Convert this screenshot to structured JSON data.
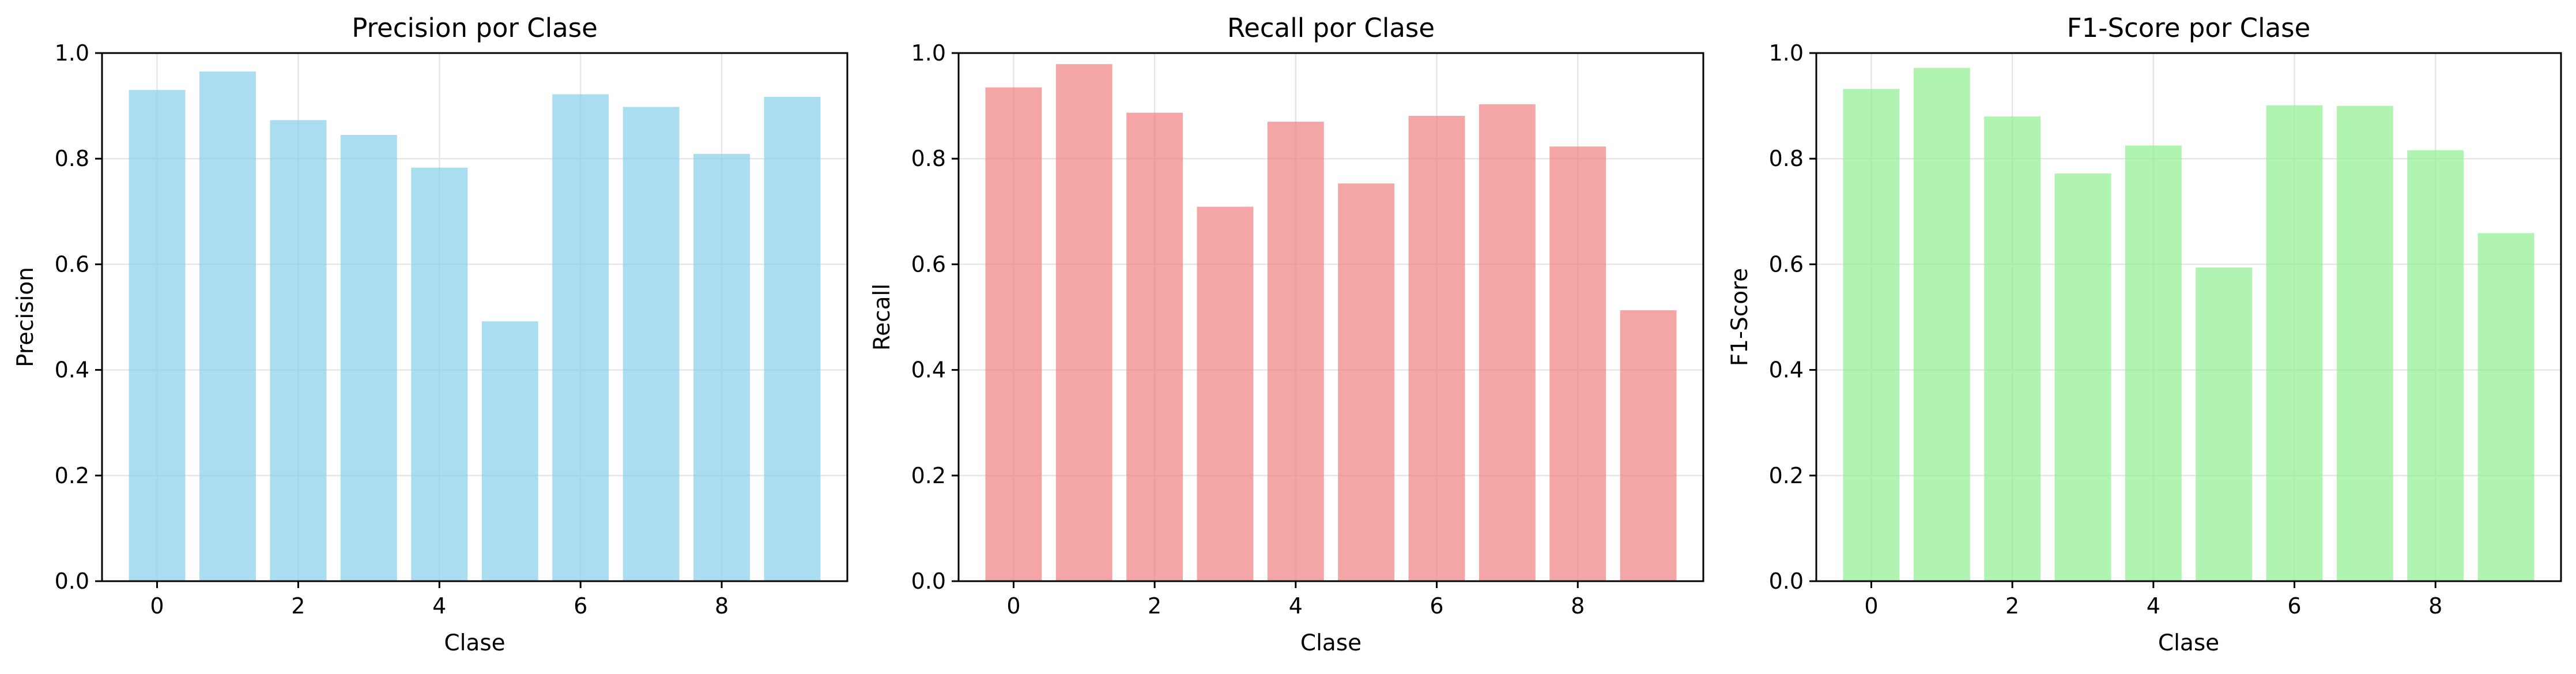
{
  "chart_data": [
    {
      "type": "bar",
      "title": "Precision por Clase",
      "xlabel": "Clase",
      "ylabel": "Precision",
      "categories": [
        0,
        1,
        2,
        3,
        4,
        5,
        6,
        7,
        8,
        9
      ],
      "values": [
        0.93,
        0.965,
        0.873,
        0.845,
        0.783,
        0.492,
        0.922,
        0.898,
        0.809,
        0.917
      ],
      "ylim": [
        0,
        1.0
      ],
      "yticks": [
        "0.0",
        "0.2",
        "0.4",
        "0.6",
        "0.8",
        "1.0"
      ],
      "xticks": [
        "0",
        "2",
        "4",
        "6",
        "8"
      ],
      "color": "#87ceeb",
      "opacity": 0.7,
      "grid": true
    },
    {
      "type": "bar",
      "title": "Recall por Clase",
      "xlabel": "Clase",
      "ylabel": "Recall",
      "categories": [
        0,
        1,
        2,
        3,
        4,
        5,
        6,
        7,
        8,
        9
      ],
      "values": [
        0.935,
        0.979,
        0.887,
        0.709,
        0.87,
        0.753,
        0.881,
        0.903,
        0.823,
        0.513
      ],
      "ylim": [
        0,
        1.0
      ],
      "yticks": [
        "0.0",
        "0.2",
        "0.4",
        "0.6",
        "0.8",
        "1.0"
      ],
      "xticks": [
        "0",
        "2",
        "4",
        "6",
        "8"
      ],
      "color": "#f08080",
      "opacity": 0.7,
      "grid": true
    },
    {
      "type": "bar",
      "title": "F1-Score por Clase",
      "xlabel": "Clase",
      "ylabel": "F1-Score",
      "categories": [
        0,
        1,
        2,
        3,
        4,
        5,
        6,
        7,
        8,
        9
      ],
      "values": [
        0.932,
        0.972,
        0.88,
        0.772,
        0.825,
        0.594,
        0.901,
        0.9,
        0.816,
        0.659
      ],
      "ylim": [
        0,
        1.0
      ],
      "yticks": [
        "0.0",
        "0.2",
        "0.4",
        "0.6",
        "0.8",
        "1.0"
      ],
      "xticks": [
        "0",
        "2",
        "4",
        "6",
        "8"
      ],
      "color": "#90ee90",
      "opacity": 0.7,
      "grid": true
    }
  ]
}
